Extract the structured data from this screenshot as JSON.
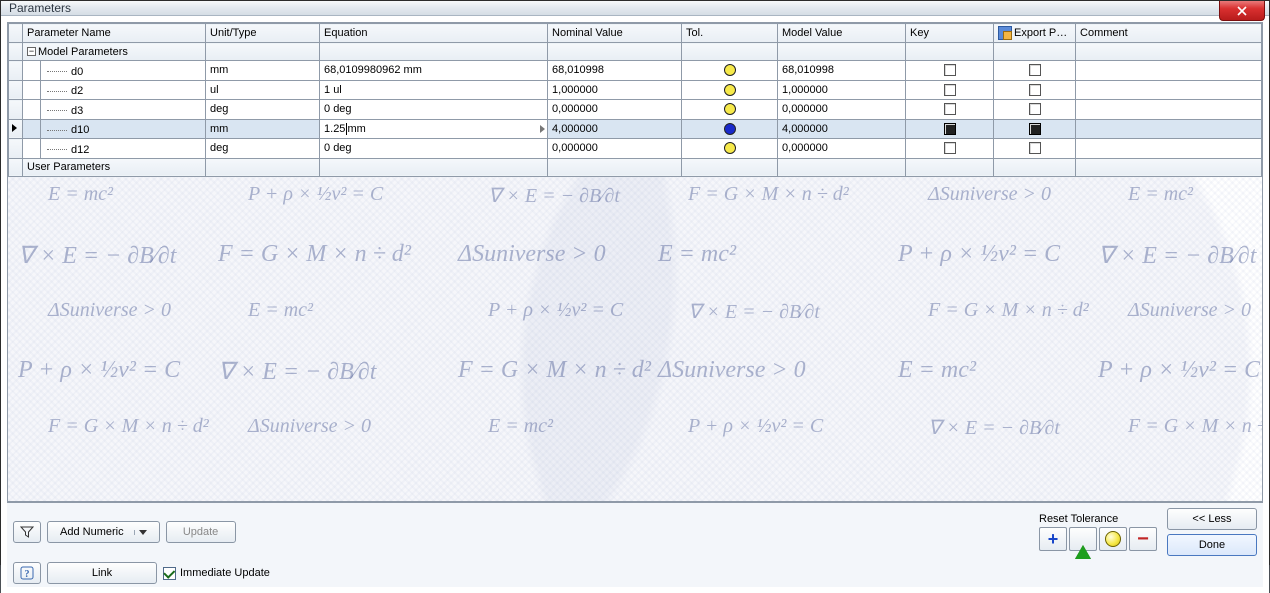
{
  "window": {
    "title": "Parameters"
  },
  "columns": {
    "name": "Parameter Name",
    "unit": "Unit/Type",
    "equation": "Equation",
    "nominal": "Nominal Value",
    "tol": "Tol.",
    "model": "Model Value",
    "key": "Key",
    "export": "Export Para",
    "comment": "Comment"
  },
  "groups": {
    "model": "Model Parameters",
    "user": "User Parameters"
  },
  "rows": [
    {
      "name": "d0",
      "unit": "mm",
      "equation": "68,0109980962 mm",
      "nominal": "68,010998",
      "tol_color": "#f6e94a",
      "model": "68,010998",
      "key": false,
      "export": false,
      "selected": false,
      "editing": false
    },
    {
      "name": "d2",
      "unit": "ul",
      "equation": "1 ul",
      "nominal": "1,000000",
      "tol_color": "#f6e94a",
      "model": "1,000000",
      "key": false,
      "export": false,
      "selected": false,
      "editing": false
    },
    {
      "name": "d3",
      "unit": "deg",
      "equation": "0 deg",
      "nominal": "0,000000",
      "tol_color": "#f6e94a",
      "model": "0,000000",
      "key": false,
      "export": false,
      "selected": false,
      "editing": false
    },
    {
      "name": "d10",
      "unit": "mm",
      "equation": "1.25mm",
      "nominal": "4,000000",
      "tol_color": "#1a2acb",
      "model": "4,000000",
      "key": true,
      "export": true,
      "selected": true,
      "editing": true
    },
    {
      "name": "d12",
      "unit": "deg",
      "equation": "0 deg",
      "nominal": "0,000000",
      "tol_color": "#f6e94a",
      "model": "0,000000",
      "key": false,
      "export": false,
      "selected": false,
      "editing": false
    }
  ],
  "footer": {
    "add": "Add Numeric",
    "update": "Update",
    "link": "Link",
    "immediate": "Immediate Update",
    "reset": "Reset Tolerance",
    "less": "<<  Less",
    "done": "Done"
  },
  "colors": {
    "selected_row": "#d9e5f2"
  }
}
